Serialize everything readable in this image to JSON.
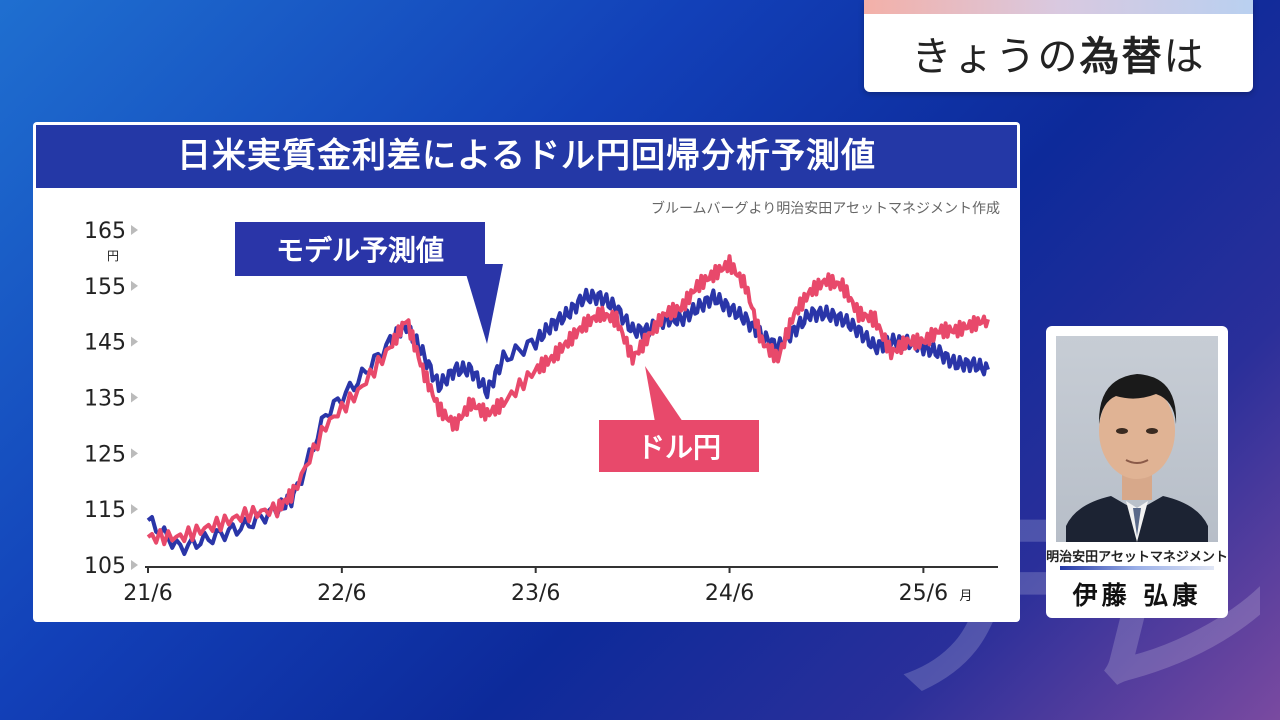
{
  "topic": {
    "prefix": "きょうの",
    "emph": "為替",
    "suffix": "は"
  },
  "chart": {
    "title": "日米実質金利差によるドル円回帰分析予測値",
    "source": "ブルームバーグより明治安田アセットマネジメント作成"
  },
  "guest": {
    "org": "明治安田アセットマネジメント",
    "name": "伊藤 弘康"
  },
  "watermark": "テレ東",
  "colors": {
    "model": "#2a35a8",
    "usdjpy": "#e8496b",
    "title_bg": "#2438a6"
  },
  "chart_data": {
    "type": "line",
    "title": "日米実質金利差によるドル円回帰分析予測値",
    "y_unit": "円",
    "x_unit": "月",
    "ylim": [
      105,
      165
    ],
    "yticks": [
      105,
      115,
      125,
      135,
      145,
      155,
      165
    ],
    "x_tick_labels": [
      "21/6",
      "22/6",
      "23/6",
      "24/6",
      "25/6"
    ],
    "xlim": [
      "2021/6",
      "2025/10"
    ],
    "grid": false,
    "legend": "callout labels",
    "series": [
      {
        "name": "モデル予測値",
        "points": [
          [
            "2021/6",
            113
          ],
          [
            "2021/8",
            108
          ],
          [
            "2021/10",
            110
          ],
          [
            "2021/12",
            112
          ],
          [
            "2022/2",
            115
          ],
          [
            "2022/3",
            117
          ],
          [
            "2022/5",
            132
          ],
          [
            "2022/7",
            138
          ],
          [
            "2022/9",
            145
          ],
          [
            "2022/10",
            148
          ],
          [
            "2022/11",
            143
          ],
          [
            "2022/12",
            137
          ],
          [
            "2023/1",
            140
          ],
          [
            "2023/2",
            140
          ],
          [
            "2023/3",
            136
          ],
          [
            "2023/4",
            142
          ],
          [
            "2023/6",
            145
          ],
          [
            "2023/7",
            148
          ],
          [
            "2023/8",
            150
          ],
          [
            "2023/9",
            153
          ],
          [
            "2023/10",
            153
          ],
          [
            "2023/11",
            151
          ],
          [
            "2023/12",
            147
          ],
          [
            "2024/1",
            147
          ],
          [
            "2024/2",
            149
          ],
          [
            "2024/3",
            149
          ],
          [
            "2024/4",
            151
          ],
          [
            "2024/5",
            153
          ],
          [
            "2024/6",
            151
          ],
          [
            "2024/7",
            149
          ],
          [
            "2024/8",
            146
          ],
          [
            "2024/9",
            144
          ],
          [
            "2024/10",
            147
          ],
          [
            "2024/11",
            150
          ],
          [
            "2024/12",
            150
          ],
          [
            "2025/1",
            149
          ],
          [
            "2025/2",
            147
          ],
          [
            "2025/3",
            144
          ],
          [
            "2025/4",
            145
          ],
          [
            "2025/5",
            145
          ],
          [
            "2025/6",
            144
          ],
          [
            "2025/7",
            143
          ],
          [
            "2025/8",
            141
          ],
          [
            "2025/9",
            141
          ],
          [
            "2025/10",
            140
          ]
        ]
      },
      {
        "name": "ドル円",
        "points": [
          [
            "2021/6",
            110
          ],
          [
            "2021/8",
            110
          ],
          [
            "2021/10",
            112
          ],
          [
            "2021/12",
            114
          ],
          [
            "2022/2",
            115
          ],
          [
            "2022/3",
            118
          ],
          [
            "2022/5",
            130
          ],
          [
            "2022/7",
            136
          ],
          [
            "2022/9",
            144
          ],
          [
            "2022/10",
            149
          ],
          [
            "2022/11",
            140
          ],
          [
            "2022/12",
            133
          ],
          [
            "2023/1",
            130
          ],
          [
            "2023/2",
            134
          ],
          [
            "2023/3",
            132
          ],
          [
            "2023/4",
            134
          ],
          [
            "2023/6",
            140
          ],
          [
            "2023/7",
            142
          ],
          [
            "2023/8",
            145
          ],
          [
            "2023/9",
            148
          ],
          [
            "2023/10",
            150
          ],
          [
            "2023/11",
            149
          ],
          [
            "2023/12",
            142
          ],
          [
            "2024/1",
            146
          ],
          [
            "2024/2",
            150
          ],
          [
            "2024/3",
            151
          ],
          [
            "2024/4",
            155
          ],
          [
            "2024/5",
            157
          ],
          [
            "2024/6",
            159
          ],
          [
            "2024/7",
            155
          ],
          [
            "2024/8",
            145
          ],
          [
            "2024/9",
            142
          ],
          [
            "2024/10",
            150
          ],
          [
            "2024/11",
            154
          ],
          [
            "2024/12",
            156
          ],
          [
            "2025/1",
            155
          ],
          [
            "2025/2",
            150
          ],
          [
            "2025/3",
            149
          ],
          [
            "2025/4",
            143
          ],
          [
            "2025/5",
            145
          ],
          [
            "2025/6",
            145
          ],
          [
            "2025/7",
            147
          ],
          [
            "2025/8",
            147
          ],
          [
            "2025/9",
            148
          ],
          [
            "2025/10",
            149
          ]
        ]
      }
    ]
  }
}
